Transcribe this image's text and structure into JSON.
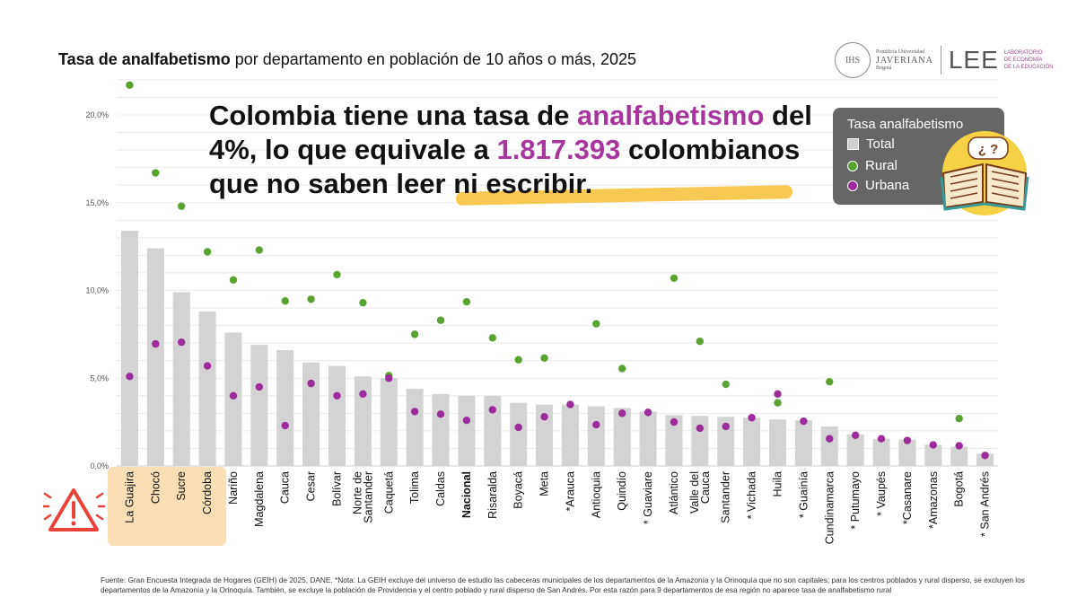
{
  "title": {
    "bold": "Tasa de analfabetismo",
    "rest": " por departamento en población de 10 años o más, 2025"
  },
  "headline": {
    "part1": "Colombia tiene una tasa de ",
    "accent1": "analfabetismo",
    "part2": " del 4%, lo que equivale a ",
    "accent2": "1.817.393",
    "part3": " colombianos que no saben leer ni escribir."
  },
  "logo": {
    "uni_small": "Pontificia Universidad",
    "uni_name": "JAVERIANA",
    "uni_city": "Bogotá",
    "lee": "LEE",
    "lee_sub1": "LABORATORIO",
    "lee_sub2": "DE ECONOMÍA",
    "lee_sub3": "DE LA EDUCACIÓN"
  },
  "legend": {
    "title": "Tasa analfabetismo",
    "total": "Total",
    "rural": "Rural",
    "urbana": "Urbana"
  },
  "book_text": "¿ ?",
  "footnote": "Fuente: Gran Encuesta Integrada de Hogares (GEIH) de 2025, DANE.   *Nota: La GEIH excluye del universo de estudio las cabeceras municipales de los departamentos de la Amazonía y la Orinoquía que no son capitales; para los centros poblados y rural disperso, se excluyen los departamentos de la Amazonía y la Orinoquía. También, se excluye la población de Providencia y el centro poblado y rural disperso de San Andrés. Por esta razón para 9 departamentos de esa región no aparece tasa de analfabetismo rural",
  "colors": {
    "total": "#d3d3d3",
    "rural": "#5aa332",
    "urbana": "#9b2c99",
    "accent": "#a7369c",
    "highlight": "#f6c33f",
    "warn_bg": "#f9dfb3",
    "warn": "#e8433a"
  },
  "chart_data": {
    "type": "bar",
    "ylim": [
      0,
      22
    ],
    "yticks": [
      0,
      5,
      10,
      15,
      20
    ],
    "yticklabels": [
      "0,0%",
      "5,0%",
      "10,0%",
      "15,0%",
      "20,0%"
    ],
    "grid": true,
    "categories": [
      "La Guajira",
      "Chocó",
      "Sucre",
      "Córdoba",
      "Nariño",
      "Magdalena",
      "Cauca",
      "Cesar",
      "Bolívar",
      "Norte de Santander",
      "Caquetá",
      "Tolima",
      "Caldas",
      "Nacional",
      "Risaralda",
      "Boyacá",
      "Meta",
      "*Arauca",
      "Antioquia",
      "Quindío",
      "* Guaviare",
      "Atlántico",
      "Valle del Cauca",
      "Santander",
      "* Vichada",
      "Huila",
      "* Guainía",
      "Cundinamarca",
      "* Putumayo",
      "* Vaupés",
      "*Casanare",
      "*Amazonas",
      "Bogotá",
      "* San Andrés"
    ],
    "highlighted_categories": [
      "La Guajira",
      "Chocó",
      "Sucre",
      "Córdoba"
    ],
    "bold_categories": [
      "Nacional"
    ],
    "series": [
      {
        "name": "Total",
        "kind": "bar",
        "values": [
          13.4,
          12.4,
          9.9,
          8.8,
          7.6,
          6.9,
          6.6,
          5.9,
          5.7,
          5.1,
          5.0,
          4.4,
          4.1,
          4.0,
          4.0,
          3.6,
          3.5,
          3.5,
          3.4,
          3.3,
          3.1,
          2.9,
          2.85,
          2.8,
          2.75,
          2.65,
          2.6,
          2.25,
          1.8,
          1.55,
          1.5,
          1.2,
          1.1,
          0.7
        ]
      },
      {
        "name": "Rural",
        "kind": "dot",
        "values": [
          21.7,
          16.7,
          14.8,
          12.2,
          10.6,
          12.3,
          9.4,
          9.5,
          10.9,
          9.3,
          5.15,
          7.5,
          8.3,
          9.35,
          7.3,
          6.05,
          6.15,
          null,
          8.1,
          5.55,
          null,
          10.7,
          7.1,
          4.65,
          null,
          3.6,
          null,
          4.8,
          null,
          null,
          null,
          null,
          2.7,
          null
        ]
      },
      {
        "name": "Urbana",
        "kind": "dot",
        "values": [
          5.1,
          6.95,
          7.05,
          5.7,
          4.0,
          4.5,
          2.3,
          4.7,
          4.0,
          4.1,
          5.0,
          3.1,
          2.95,
          2.6,
          3.2,
          2.2,
          2.8,
          3.5,
          2.35,
          3.0,
          3.05,
          2.5,
          2.15,
          2.25,
          2.75,
          4.1,
          2.55,
          1.55,
          1.75,
          1.55,
          1.45,
          1.2,
          1.15,
          0.6
        ]
      }
    ]
  }
}
